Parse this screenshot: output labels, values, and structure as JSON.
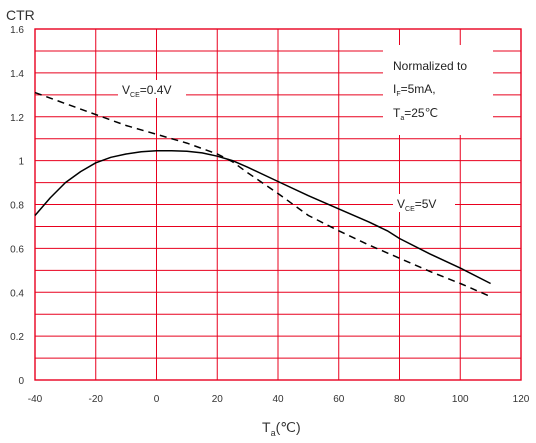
{
  "chart_data": {
    "type": "line",
    "title": "",
    "ylabel": "CTR",
    "xlabel": {
      "main": "T",
      "sub": "a",
      "unit": "(℃)"
    },
    "xlim": [
      -40,
      120
    ],
    "ylim": [
      0,
      1.6
    ],
    "x_ticks": [
      "-40",
      "-20",
      "0",
      "20",
      "40",
      "60",
      "80",
      "100",
      "120"
    ],
    "y_ticks": [
      "0",
      "0.2",
      "0.4",
      "0.6",
      "0.8",
      "1",
      "1.2",
      "1.4",
      "1.6"
    ],
    "grid": true,
    "grid_color": "#e8001e",
    "line_color": "#000000",
    "annotation": {
      "line1": "Normalized to",
      "line2": {
        "main": "I",
        "sub": "F",
        "rest": "=5mA,"
      },
      "line3": {
        "main": "T",
        "sub": "a",
        "rest": "=25℃"
      }
    },
    "series": [
      {
        "label": {
          "main": "V",
          "sub": "CE",
          "rest": "=5V"
        },
        "style": "solid",
        "x": [
          -40,
          -35,
          -30,
          -25,
          -20,
          -15,
          -10,
          -5,
          0,
          5,
          10,
          15,
          20,
          25,
          30,
          40,
          50,
          60,
          70,
          76,
          80,
          90,
          100,
          110
        ],
        "y": [
          0.75,
          0.83,
          0.9,
          0.95,
          0.99,
          1.015,
          1.03,
          1.04,
          1.045,
          1.045,
          1.043,
          1.035,
          1.02,
          1.0,
          0.97,
          0.905,
          0.84,
          0.78,
          0.72,
          0.68,
          0.645,
          0.575,
          0.51,
          0.44
        ]
      },
      {
        "label": {
          "main": "V",
          "sub": "CE",
          "rest": "=0.4V"
        },
        "style": "dashed",
        "x": [
          -40,
          -30,
          -20,
          -10,
          0,
          10,
          20,
          25,
          30,
          40,
          50,
          60,
          70,
          80,
          90,
          100,
          110
        ],
        "y": [
          1.31,
          1.26,
          1.21,
          1.16,
          1.12,
          1.08,
          1.03,
          0.995,
          0.945,
          0.85,
          0.75,
          0.68,
          0.615,
          0.555,
          0.495,
          0.44,
          0.38
        ]
      }
    ]
  }
}
